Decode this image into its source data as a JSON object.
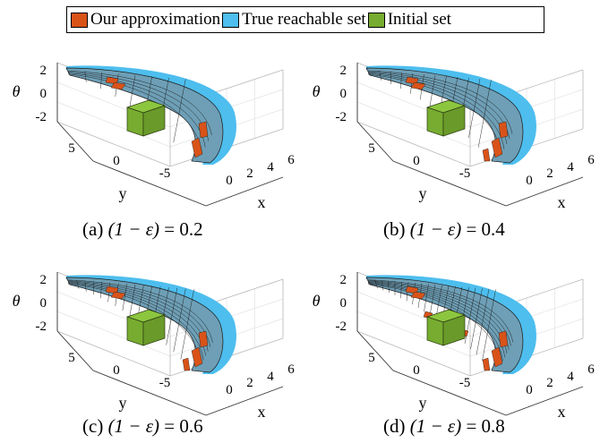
{
  "legend": {
    "items": [
      {
        "label": "Our approximation",
        "color": "#d95319"
      },
      {
        "label": "True reachable set",
        "color": "#4dbeee"
      },
      {
        "label": "Initial set",
        "color": "#77ac30"
      }
    ]
  },
  "axes": {
    "z_label": "θ",
    "y_label": "y",
    "x_label": "x",
    "z_ticks": [
      "2",
      "0",
      "-2"
    ],
    "y_ticks": [
      "5",
      "0",
      "-5"
    ],
    "x_ticks": [
      "0",
      "2",
      "4",
      "6"
    ]
  },
  "panels": [
    {
      "tag": "(a)",
      "expr": "(1 − ε)",
      "eq": "= 0.2",
      "density": 1
    },
    {
      "tag": "(b)",
      "expr": "(1 − ε)",
      "eq": "= 0.4",
      "density": 2
    },
    {
      "tag": "(c)",
      "expr": "(1 − ε)",
      "eq": "= 0.6",
      "density": 3
    },
    {
      "tag": "(d)",
      "expr": "(1 − ε)",
      "eq": "= 0.8",
      "density": 4
    }
  ],
  "colors": {
    "approximation": "#d95319",
    "reachable": "#4dbeee",
    "initial": "#77ac30",
    "mesh": "#5a8fa8"
  }
}
